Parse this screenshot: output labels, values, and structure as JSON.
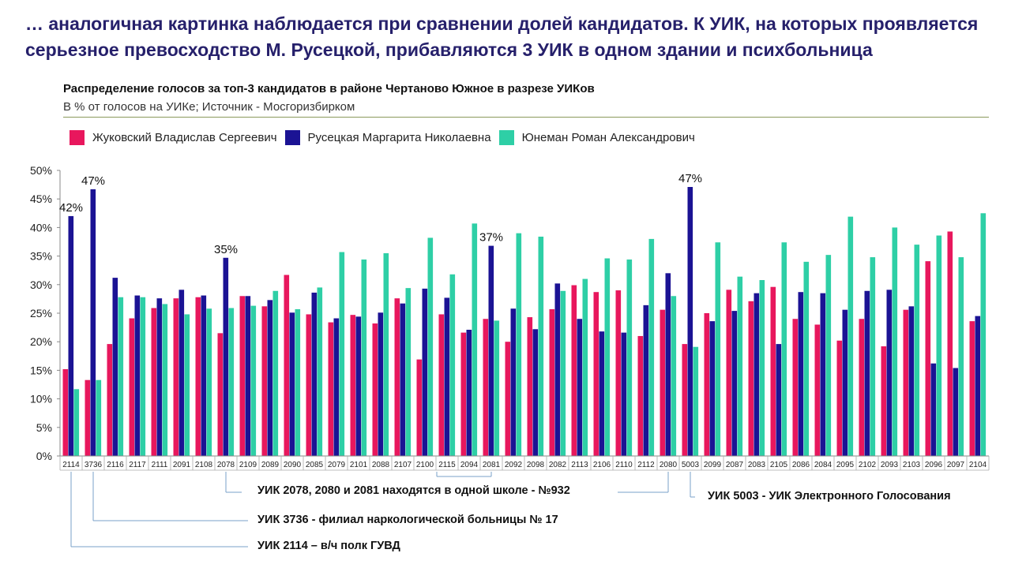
{
  "headline": "… аналогичная картинка наблюдается при сравнении долей кандидатов. К УИК, на которых проявляется серьезное превосходство М. Русецкой, прибавляются 3 УИК в одном здании и психбольница",
  "chart_data": {
    "type": "bar",
    "title": "Распределение голосов за топ-3 кандидатов в районе Чертаново Южное в разрезе УИКов",
    "subtitle": "В % от голосов на УИКе; Источник - Мосгоризбирком",
    "ylim": [
      0,
      50
    ],
    "yticks": [
      "0%",
      "5%",
      "10%",
      "15%",
      "20%",
      "25%",
      "30%",
      "35%",
      "40%",
      "45%",
      "50%"
    ],
    "legend_position": "top",
    "categories": [
      "2114",
      "3736",
      "2116",
      "2117",
      "2111",
      "2091",
      "2108",
      "2078",
      "2109",
      "2089",
      "2090",
      "2085",
      "2079",
      "2101",
      "2088",
      "2107",
      "2100",
      "2115",
      "2094",
      "2081",
      "2092",
      "2098",
      "2082",
      "2113",
      "2106",
      "2110",
      "2112",
      "2080",
      "5003",
      "2099",
      "2087",
      "2083",
      "2105",
      "2086",
      "2084",
      "2095",
      "2102",
      "2093",
      "2103",
      "2096",
      "2097",
      "2104"
    ],
    "series": [
      {
        "name": "Жуковский Владислав Сергеевич",
        "color": "#e8175d",
        "values": [
          15.2,
          13.3,
          19.6,
          24.1,
          25.9,
          27.6,
          27.8,
          21.5,
          28.0,
          26.2,
          31.7,
          24.8,
          23.4,
          24.7,
          23.2,
          27.6,
          16.9,
          24.8,
          21.6,
          24.0,
          20.0,
          24.3,
          25.7,
          29.9,
          28.7,
          29.0,
          21.0,
          25.6,
          19.6,
          25.0,
          29.1,
          27.1,
          29.6,
          24.0,
          23.0,
          20.2,
          24.0,
          19.2,
          25.6,
          34.1,
          39.3,
          23.6
        ]
      },
      {
        "name": "Русецкая Маргарита Николаевна",
        "color": "#1b1394",
        "values": [
          42.0,
          46.7,
          31.2,
          28.1,
          27.6,
          29.1,
          28.1,
          34.7,
          28.0,
          27.3,
          25.1,
          28.6,
          24.1,
          24.4,
          25.1,
          26.7,
          29.3,
          27.7,
          22.1,
          36.8,
          25.8,
          22.2,
          30.2,
          24.0,
          21.8,
          21.6,
          26.4,
          32.0,
          47.1,
          23.6,
          25.4,
          28.5,
          19.6,
          28.7,
          28.5,
          25.6,
          28.9,
          29.1,
          26.2,
          16.2,
          15.4,
          24.5
        ]
      },
      {
        "name": "Юнеман Роман Александрович",
        "color": "#2ecfa6",
        "values": [
          11.7,
          13.3,
          27.8,
          27.8,
          26.6,
          24.8,
          25.8,
          25.9,
          26.3,
          28.9,
          25.7,
          29.5,
          35.7,
          34.4,
          35.5,
          29.4,
          38.2,
          31.8,
          40.7,
          23.7,
          39.0,
          38.4,
          28.9,
          31.0,
          34.6,
          34.4,
          38.0,
          28.0,
          19.1,
          37.4,
          31.4,
          30.8,
          37.4,
          34.0,
          35.2,
          41.9,
          34.8,
          40.0,
          37.0,
          38.6,
          34.8,
          42.5
        ]
      }
    ],
    "data_labels": [
      {
        "category": "2114",
        "series": 1,
        "text": "42%"
      },
      {
        "category": "3736",
        "series": 1,
        "text": "47%"
      },
      {
        "category": "2078",
        "series": 1,
        "text": "35%"
      },
      {
        "category": "2081",
        "series": 1,
        "text": "37%"
      },
      {
        "category": "5003",
        "series": 1,
        "text": "47%"
      }
    ]
  },
  "annotations": [
    {
      "text": "УИК 2078, 2080 и 2081 находятся в одной школе - №932"
    },
    {
      "text": "УИК 5003 - УИК Электронного Голосования"
    },
    {
      "text": "УИК 3736 - филиал наркологической больницы № 17"
    },
    {
      "text": "УИК 2114 – в/ч полк ГУВД"
    }
  ]
}
